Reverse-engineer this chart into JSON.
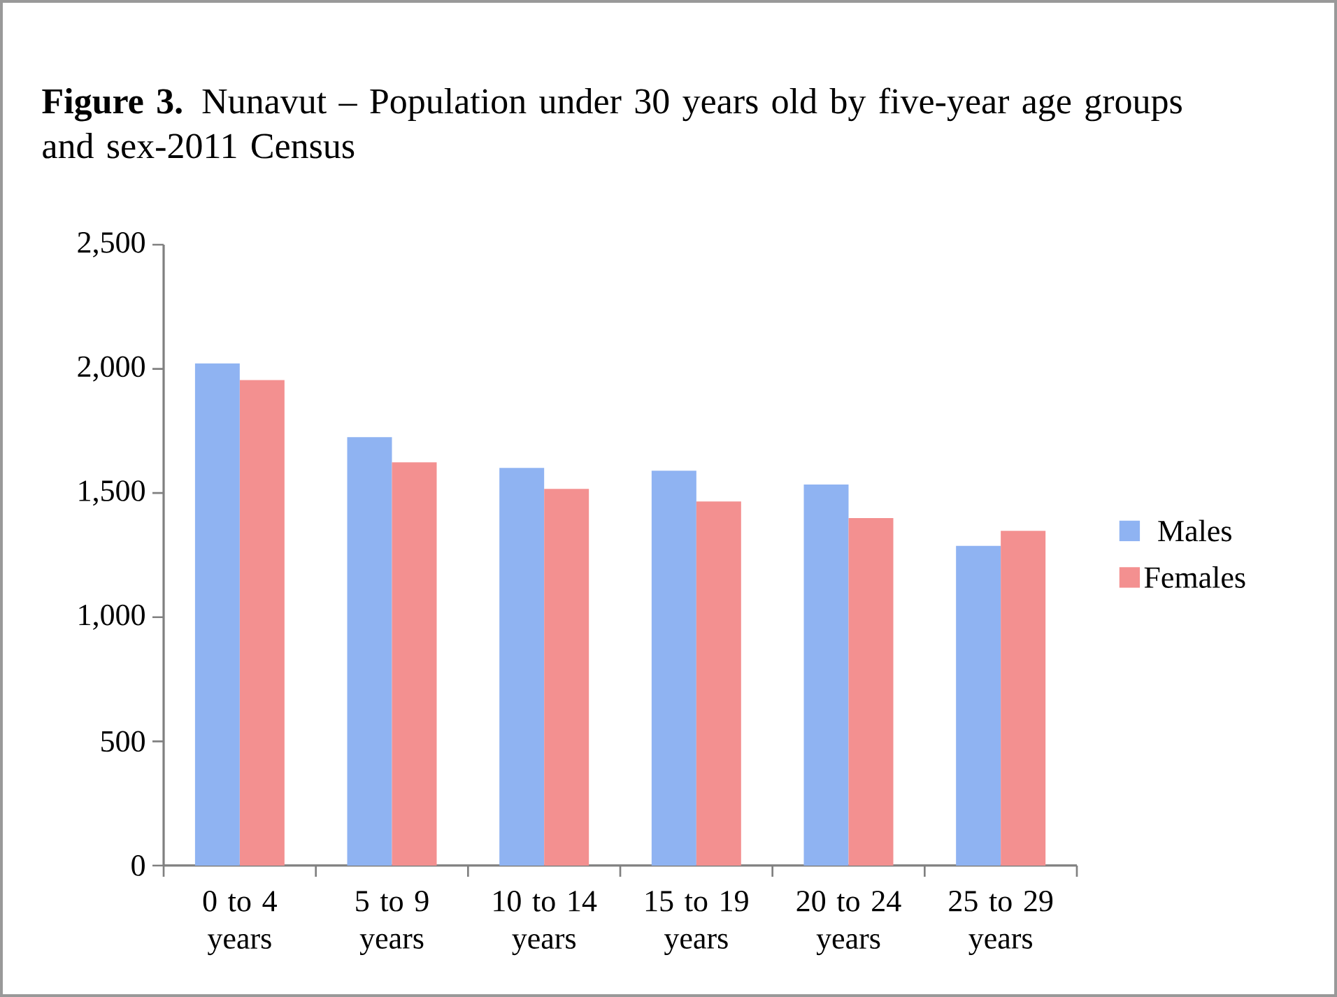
{
  "chart_data": {
    "type": "bar",
    "title": "**Figure 3.** Nunavut – Population under 30 years old by five-year age groups and sex-2011 Census",
    "categories": [
      "0 to 4 years",
      "5 to 9 years",
      "10 to 14 years",
      "15 to 19 years",
      "20 to 24 years",
      "25 to 29 years"
    ],
    "series": [
      {
        "name": "Males",
        "color": "#8fb3f2",
        "values": [
          2022,
          1725,
          1601,
          1590,
          1534,
          1287
        ]
      },
      {
        "name": "Females",
        "color": "#f39090",
        "values": [
          1955,
          1624,
          1517,
          1466,
          1399,
          1348
        ]
      }
    ],
    "ylim": [
      0,
      2500
    ],
    "yticks": [
      0,
      500,
      {
        "value": 1000,
        "label": "1,000"
      },
      {
        "value": 1500,
        "label": "1,500"
      },
      {
        "value": 2000,
        "label": "2,000"
      },
      {
        "value": 2500,
        "label": "2,500"
      }
    ],
    "grid": false,
    "legend": "right"
  }
}
